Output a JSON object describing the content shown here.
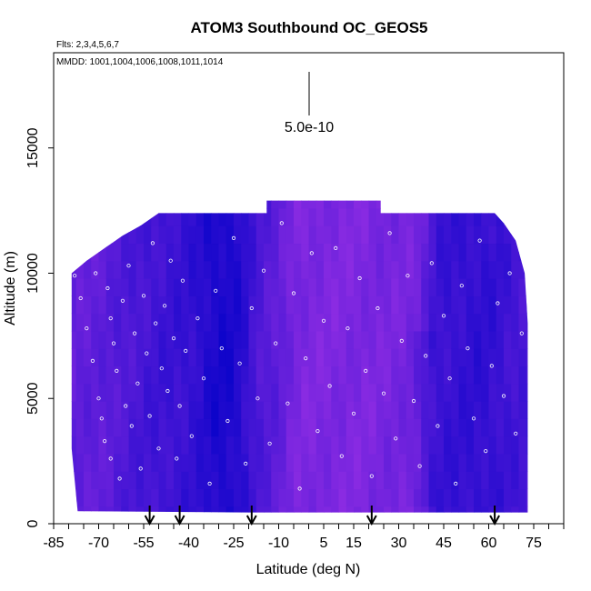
{
  "chart_data": {
    "type": "heatmap",
    "title": "ATOM3 Southbound OC_GEOS5",
    "flights_label": "Flts: 2,3,4,5,6,7",
    "dates_label": "MMDD: 1001,1004,1006,1008,1011,1014",
    "scale_label": "5.0e-10",
    "xlabel": "Latitude (deg N)",
    "ylabel": "Altitude (m)",
    "xlim": [
      -85,
      85
    ],
    "ylim": [
      0,
      18800
    ],
    "x_ticks": [
      -85,
      -70,
      -55,
      -40,
      -25,
      -10,
      5,
      15,
      30,
      45,
      60,
      75
    ],
    "x_tick_labels": [
      "-85",
      "-70",
      "-55",
      "-40",
      "-25",
      "-10",
      "5",
      "15",
      "30",
      "45",
      "60",
      "75"
    ],
    "x_minor_step": 5,
    "y_ticks": [
      0,
      5000,
      10000,
      15000
    ],
    "y_tick_labels": [
      "0",
      "5000",
      "10000",
      "15000"
    ],
    "grid": false,
    "curtain_top": [
      {
        "lat": -79,
        "alt": 10000
      },
      {
        "lat": -74,
        "alt": 10500
      },
      {
        "lat": -68,
        "alt": 11000
      },
      {
        "lat": -62,
        "alt": 11500
      },
      {
        "lat": -56,
        "alt": 11900
      },
      {
        "lat": -50,
        "alt": 12400
      },
      {
        "lat": -20,
        "alt": 12400
      },
      {
        "lat": -14,
        "alt": 12400
      },
      {
        "lat": -14,
        "alt": 12900
      },
      {
        "lat": 24,
        "alt": 12900
      },
      {
        "lat": 24,
        "alt": 12400
      },
      {
        "lat": 62,
        "alt": 12400
      },
      {
        "lat": 65,
        "alt": 12000
      },
      {
        "lat": 69,
        "alt": 11300
      },
      {
        "lat": 72,
        "alt": 10000
      },
      {
        "lat": 73,
        "alt": 8000
      }
    ],
    "curtain_bottom": [
      {
        "lat": -79,
        "alt": 3000
      },
      {
        "lat": -77,
        "alt": 500
      },
      {
        "lat": -20,
        "alt": 450
      },
      {
        "lat": 55,
        "alt": 450
      },
      {
        "lat": 73,
        "alt": 450
      }
    ],
    "color_low": "#8a2be2",
    "color_high": "#0000c8",
    "value_field": [
      {
        "lat": -70,
        "alt_min": 0,
        "alt_max": 13000,
        "intensity": 0.3
      },
      {
        "lat": -60,
        "alt_min": 0,
        "alt_max": 13000,
        "intensity": 0.45
      },
      {
        "lat": -50,
        "alt_min": 0,
        "alt_max": 13000,
        "intensity": 0.55
      },
      {
        "lat": -40,
        "alt_min": 0,
        "alt_max": 13000,
        "intensity": 0.6
      },
      {
        "lat": -30,
        "alt_min": 3500,
        "alt_max": 13000,
        "intensity": 0.85
      },
      {
        "lat": -25,
        "alt_min": 0,
        "alt_max": 13000,
        "intensity": 0.8
      },
      {
        "lat": -15,
        "alt_min": 0,
        "alt_max": 13000,
        "intensity": 0.35
      },
      {
        "lat": 0,
        "alt_min": 0,
        "alt_max": 13000,
        "intensity": 0.1
      },
      {
        "lat": 15,
        "alt_min": 0,
        "alt_max": 13000,
        "intensity": 0.1
      },
      {
        "lat": 30,
        "alt_min": 0,
        "alt_max": 13000,
        "intensity": 0.15
      },
      {
        "lat": 45,
        "alt_min": 1000,
        "alt_max": 8000,
        "intensity": 0.6
      },
      {
        "lat": 60,
        "alt_min": 500,
        "alt_max": 11000,
        "intensity": 0.65
      },
      {
        "lat": 70,
        "alt_min": 0,
        "alt_max": 12000,
        "intensity": 0.5
      }
    ],
    "flight_arrows_lat": [
      -53,
      -43,
      -19,
      21,
      62
    ],
    "sample_points": [
      {
        "lat": -78,
        "alt": 9900
      },
      {
        "lat": -76,
        "alt": 9000
      },
      {
        "lat": -74,
        "alt": 7800
      },
      {
        "lat": -72,
        "alt": 6500
      },
      {
        "lat": -71,
        "alt": 10000
      },
      {
        "lat": -70,
        "alt": 5000
      },
      {
        "lat": -69,
        "alt": 4200
      },
      {
        "lat": -68,
        "alt": 3300
      },
      {
        "lat": -67,
        "alt": 9400
      },
      {
        "lat": -66,
        "alt": 8200
      },
      {
        "lat": -66,
        "alt": 2600
      },
      {
        "lat": -65,
        "alt": 7200
      },
      {
        "lat": -64,
        "alt": 6100
      },
      {
        "lat": -63,
        "alt": 1800
      },
      {
        "lat": -62,
        "alt": 8900
      },
      {
        "lat": -61,
        "alt": 4700
      },
      {
        "lat": -60,
        "alt": 10300
      },
      {
        "lat": -59,
        "alt": 3900
      },
      {
        "lat": -58,
        "alt": 7600
      },
      {
        "lat": -57,
        "alt": 5600
      },
      {
        "lat": -56,
        "alt": 2200
      },
      {
        "lat": -55,
        "alt": 9100
      },
      {
        "lat": -54,
        "alt": 6800
      },
      {
        "lat": -53,
        "alt": 4300
      },
      {
        "lat": -52,
        "alt": 11200
      },
      {
        "lat": -51,
        "alt": 8000
      },
      {
        "lat": -50,
        "alt": 3000
      },
      {
        "lat": -49,
        "alt": 6200
      },
      {
        "lat": -48,
        "alt": 8700
      },
      {
        "lat": -47,
        "alt": 5300
      },
      {
        "lat": -46,
        "alt": 10500
      },
      {
        "lat": -45,
        "alt": 7400
      },
      {
        "lat": -44,
        "alt": 2600
      },
      {
        "lat": -43,
        "alt": 4700
      },
      {
        "lat": -42,
        "alt": 9700
      },
      {
        "lat": -41,
        "alt": 6900
      },
      {
        "lat": -39,
        "alt": 3500
      },
      {
        "lat": -37,
        "alt": 8200
      },
      {
        "lat": -35,
        "alt": 5800
      },
      {
        "lat": -33,
        "alt": 1600
      },
      {
        "lat": -31,
        "alt": 9300
      },
      {
        "lat": -29,
        "alt": 7000
      },
      {
        "lat": -27,
        "alt": 4100
      },
      {
        "lat": -25,
        "alt": 11400
      },
      {
        "lat": -23,
        "alt": 6400
      },
      {
        "lat": -21,
        "alt": 2400
      },
      {
        "lat": -19,
        "alt": 8600
      },
      {
        "lat": -17,
        "alt": 5000
      },
      {
        "lat": -15,
        "alt": 10100
      },
      {
        "lat": -13,
        "alt": 3200
      },
      {
        "lat": -11,
        "alt": 7200
      },
      {
        "lat": -9,
        "alt": 12000
      },
      {
        "lat": -7,
        "alt": 4800
      },
      {
        "lat": -5,
        "alt": 9200
      },
      {
        "lat": -3,
        "alt": 1400
      },
      {
        "lat": -1,
        "alt": 6600
      },
      {
        "lat": 1,
        "alt": 10800
      },
      {
        "lat": 3,
        "alt": 3700
      },
      {
        "lat": 5,
        "alt": 8100
      },
      {
        "lat": 7,
        "alt": 5500
      },
      {
        "lat": 9,
        "alt": 11000
      },
      {
        "lat": 11,
        "alt": 2700
      },
      {
        "lat": 13,
        "alt": 7800
      },
      {
        "lat": 15,
        "alt": 4400
      },
      {
        "lat": 17,
        "alt": 9800
      },
      {
        "lat": 19,
        "alt": 6100
      },
      {
        "lat": 21,
        "alt": 1900
      },
      {
        "lat": 23,
        "alt": 8600
      },
      {
        "lat": 25,
        "alt": 5200
      },
      {
        "lat": 27,
        "alt": 11600
      },
      {
        "lat": 29,
        "alt": 3400
      },
      {
        "lat": 31,
        "alt": 7300
      },
      {
        "lat": 33,
        "alt": 9900
      },
      {
        "lat": 35,
        "alt": 4900
      },
      {
        "lat": 37,
        "alt": 2300
      },
      {
        "lat": 39,
        "alt": 6700
      },
      {
        "lat": 41,
        "alt": 10400
      },
      {
        "lat": 43,
        "alt": 3900
      },
      {
        "lat": 45,
        "alt": 8300
      },
      {
        "lat": 47,
        "alt": 5800
      },
      {
        "lat": 49,
        "alt": 1600
      },
      {
        "lat": 51,
        "alt": 9500
      },
      {
        "lat": 53,
        "alt": 7000
      },
      {
        "lat": 55,
        "alt": 4200
      },
      {
        "lat": 57,
        "alt": 11300
      },
      {
        "lat": 59,
        "alt": 2900
      },
      {
        "lat": 61,
        "alt": 6300
      },
      {
        "lat": 63,
        "alt": 8800
      },
      {
        "lat": 65,
        "alt": 5100
      },
      {
        "lat": 67,
        "alt": 10000
      },
      {
        "lat": 69,
        "alt": 3600
      },
      {
        "lat": 71,
        "alt": 7600
      }
    ]
  }
}
